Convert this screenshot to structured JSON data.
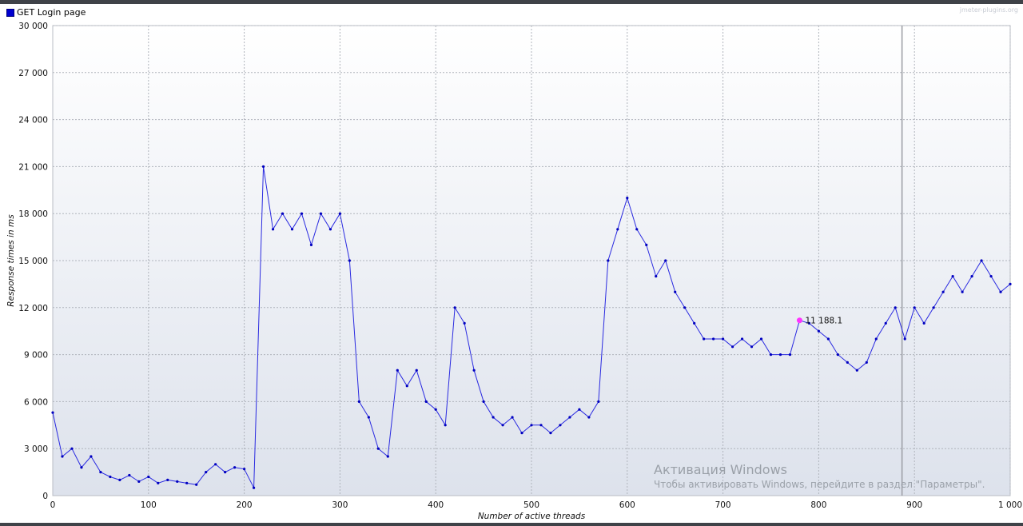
{
  "legend": {
    "label": "GET Login page",
    "color": "#0000d0"
  },
  "watermark_site": "jmeter-plugins.org",
  "windows_activation": {
    "title": "Активация Windows",
    "subtitle": "Чтобы активировать Windows, перейдите в раздел \"Параметры\"."
  },
  "hover_label": {
    "text": "11 188.1",
    "x": 780,
    "y": 11188.1,
    "color": "#ff33ff"
  },
  "cursor_line_x": 887,
  "chart_data": {
    "type": "line",
    "xlabel": "Number of active threads",
    "ylabel": "Response times in ms",
    "xlim": [
      0,
      1000
    ],
    "ylim": [
      0,
      30000
    ],
    "x_ticks": [
      "0",
      "100",
      "200",
      "300",
      "400",
      "500",
      "600",
      "700",
      "800",
      "900",
      "1 000"
    ],
    "y_ticks": [
      "0",
      "3 000",
      "6 000",
      "9 000",
      "12 000",
      "15 000",
      "18 000",
      "21 000",
      "24 000",
      "27 000",
      "30 000"
    ],
    "grid": true,
    "series": [
      {
        "name": "GET Login page",
        "color": "#0000d0",
        "x": [
          0,
          10,
          20,
          30,
          40,
          50,
          60,
          70,
          80,
          90,
          100,
          110,
          120,
          130,
          140,
          150,
          160,
          170,
          180,
          190,
          200,
          210,
          220,
          230,
          240,
          250,
          260,
          270,
          280,
          290,
          300,
          310,
          320,
          330,
          340,
          350,
          360,
          370,
          380,
          390,
          400,
          410,
          420,
          430,
          440,
          450,
          460,
          470,
          480,
          490,
          500,
          510,
          520,
          530,
          540,
          550,
          560,
          570,
          580,
          590,
          600,
          610,
          620,
          630,
          640,
          650,
          660,
          670,
          680,
          690,
          700,
          710,
          720,
          730,
          740,
          750,
          760,
          770,
          780,
          790,
          800,
          810,
          820,
          830,
          840,
          850,
          860,
          870,
          880,
          890,
          900,
          910,
          920,
          930,
          940,
          950,
          960,
          970,
          980,
          990,
          1000
        ],
        "values": [
          5300,
          2500,
          3000,
          1800,
          2500,
          1500,
          1200,
          1000,
          1300,
          900,
          1200,
          800,
          1000,
          900,
          800,
          700,
          1500,
          2000,
          1500,
          1800,
          1700,
          500,
          21000,
          17000,
          18000,
          17000,
          18000,
          16000,
          18000,
          17000,
          18000,
          15000,
          6000,
          5000,
          3000,
          2500,
          8000,
          7000,
          8000,
          6000,
          5500,
          4500,
          12000,
          11000,
          8000,
          6000,
          5000,
          4500,
          5000,
          4000,
          4500,
          4500,
          4000,
          4500,
          5000,
          5500,
          5000,
          6000,
          15000,
          17000,
          19000,
          17000,
          16000,
          14000,
          15000,
          13000,
          12000,
          11000,
          10000,
          10000,
          10000,
          9500,
          10000,
          9500,
          10000,
          9000,
          9000,
          9000,
          11188.1,
          11000,
          10500,
          10000,
          9000,
          8500,
          8000,
          8500,
          10000,
          11000,
          12000,
          10000,
          12000,
          11000,
          12000,
          13000,
          14000,
          13000,
          14000,
          15000,
          14000,
          13000,
          13500
        ],
        "note_values_shown": "approximate envelope"
      }
    ]
  }
}
